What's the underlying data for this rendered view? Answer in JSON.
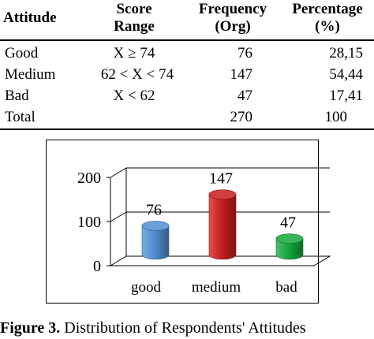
{
  "table": {
    "headers": [
      [
        "Attitude"
      ],
      [
        "Score",
        "Range"
      ],
      [
        "Frequency",
        "(Org)"
      ],
      [
        "Percentage",
        "(%)"
      ]
    ],
    "rows": [
      [
        "Good",
        "X ≥ 74",
        "76",
        "28,15"
      ],
      [
        "Medium",
        "62 < X < 74",
        "147",
        "54,44"
      ],
      [
        "Bad",
        "X < 62",
        "47",
        "17,41"
      ],
      [
        "Total",
        "",
        "270",
        "100"
      ]
    ]
  },
  "chart_data": {
    "type": "bar",
    "style": "3d-cylinder",
    "categories": [
      "good",
      "medium",
      "bad"
    ],
    "values": [
      76,
      147,
      47
    ],
    "data_labels": [
      "76",
      "147",
      "47"
    ],
    "colors": [
      "#4f8fd0",
      "#c81d1d",
      "#14a53d"
    ],
    "ylim": [
      0,
      200
    ],
    "yticks": [
      0,
      100,
      200
    ],
    "ytick_labels": [
      "0",
      "100",
      "200"
    ],
    "grid": true,
    "legend": "none"
  },
  "caption": {
    "label": "Figure 3.",
    "text": " Distribution of Respondents' Attitudes"
  }
}
